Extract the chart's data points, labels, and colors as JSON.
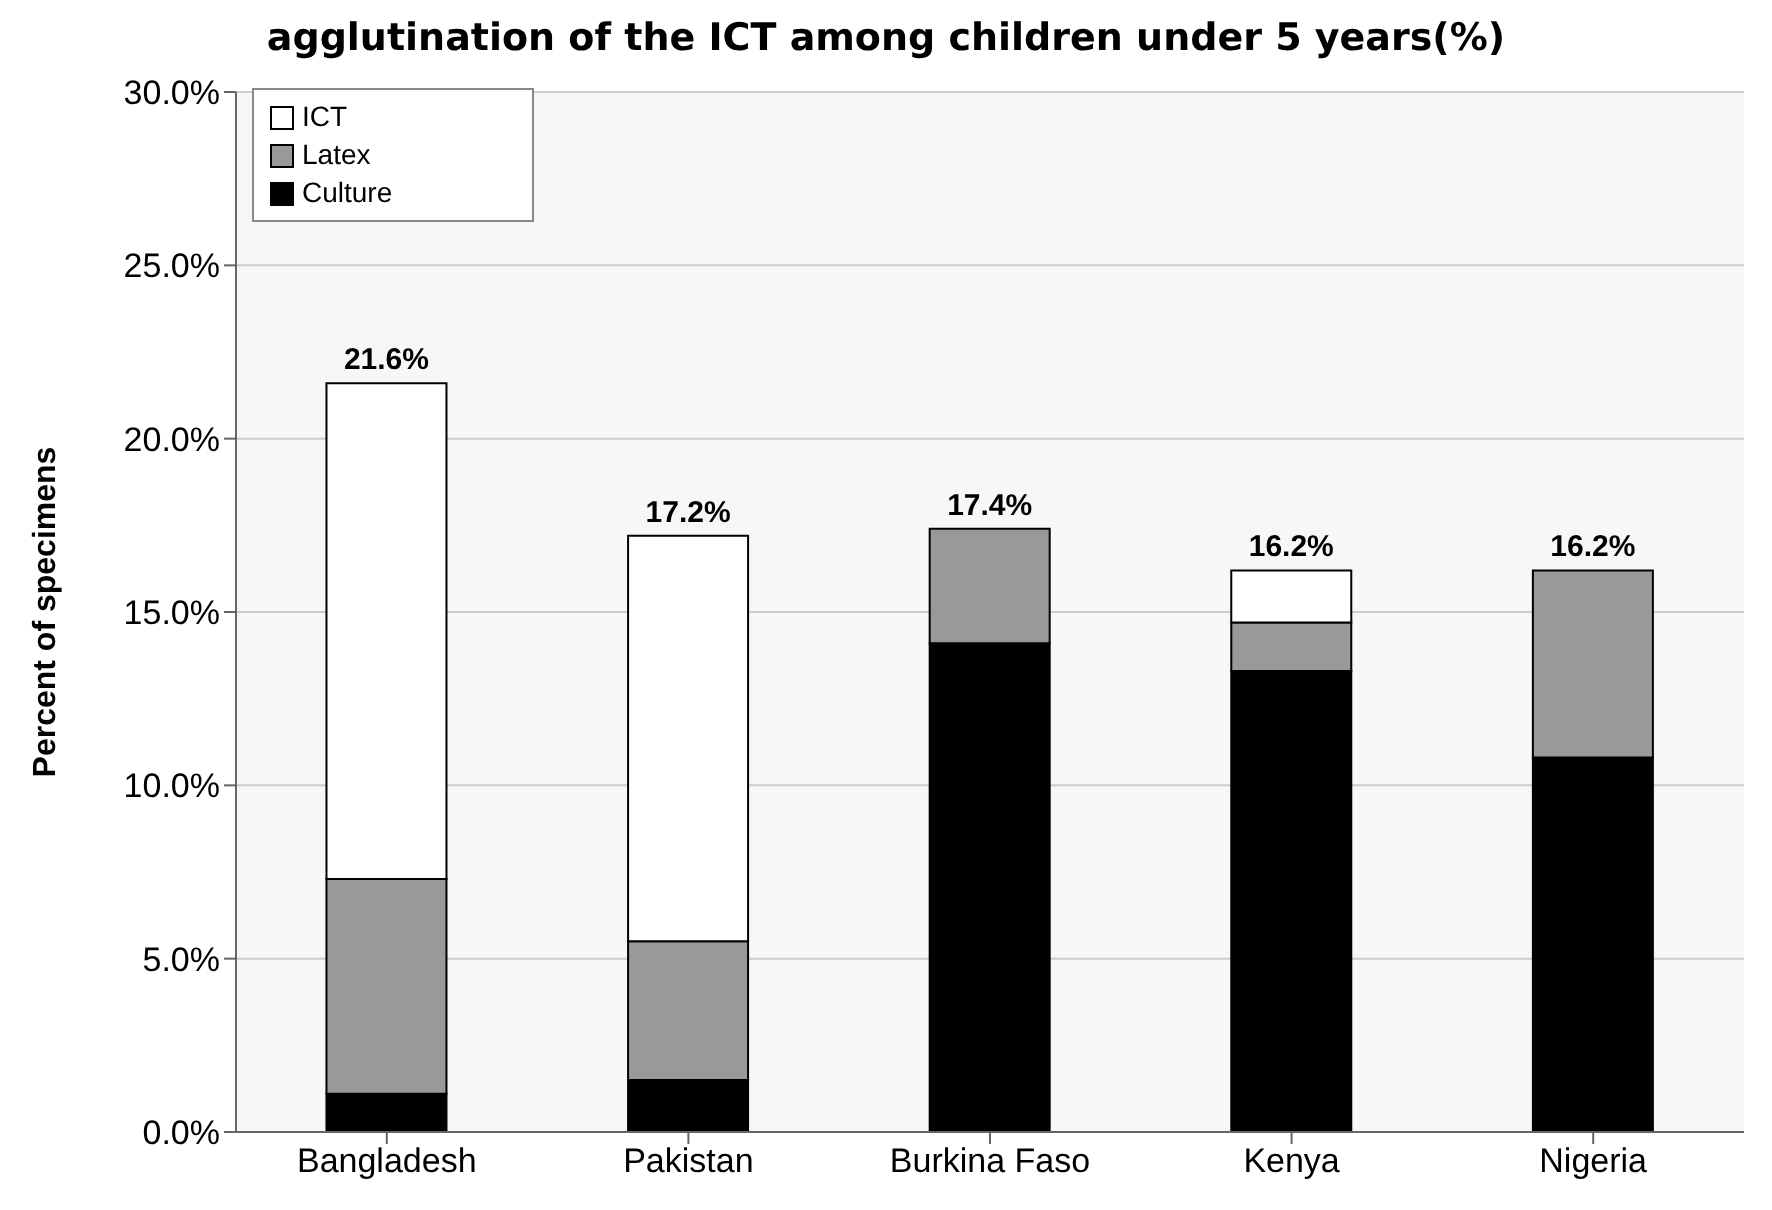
{
  "chart_data": {
    "type": "bar",
    "title": "agglutination of the ICT among children under 5 years(%)",
    "ylabel": "Percent of specimens",
    "categories": [
      "Bangladesh",
      "Pakistan",
      "Burkina Faso",
      "Kenya",
      "Nigeria"
    ],
    "stacked": true,
    "series": [
      {
        "name": "Culture",
        "color": "#000000",
        "values": [
          1.1,
          1.5,
          14.1,
          13.3,
          10.8
        ]
      },
      {
        "name": "Latex",
        "color": "#999999",
        "values": [
          6.2,
          4.0,
          3.3,
          1.4,
          5.4
        ]
      },
      {
        "name": "ICT",
        "color": "#ffffff",
        "values": [
          14.3,
          11.7,
          0,
          1.5,
          0
        ]
      }
    ],
    "totals": [
      "21.6%",
      "17.2%",
      "17.4%",
      "16.2%",
      "16.2%"
    ],
    "ylim": [
      0,
      30
    ],
    "yticks": [
      {
        "value": 0,
        "label": "0.0%"
      },
      {
        "value": 5,
        "label": "5.0%"
      },
      {
        "value": 10,
        "label": "10.0%"
      },
      {
        "value": 15,
        "label": "15.0%"
      },
      {
        "value": 20,
        "label": "20.0%"
      },
      {
        "value": 25,
        "label": "25.0%"
      },
      {
        "value": 30,
        "label": "30.0%"
      }
    ],
    "grid": "y",
    "legend": "top left"
  }
}
